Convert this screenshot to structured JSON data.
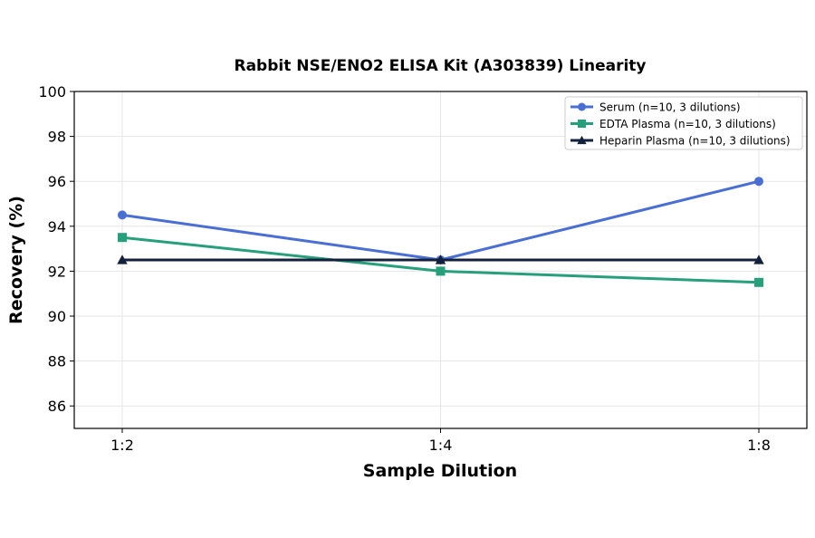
{
  "chart_data": {
    "type": "line",
    "title": "Rabbit NSE/ENO2 ELISA Kit (A303839) Linearity",
    "xlabel": "Sample Dilution",
    "ylabel": "Recovery (%)",
    "categories": [
      "1:2",
      "1:4",
      "1:8"
    ],
    "ylim": [
      85,
      100
    ],
    "yticks": [
      86,
      88,
      90,
      92,
      94,
      96,
      98,
      100
    ],
    "grid": true,
    "legend_position": "top-right",
    "series": [
      {
        "name": "Serum (n=10, 3 dilutions)",
        "values": [
          94.5,
          92.5,
          96.0
        ],
        "color": "#4a6fd4",
        "marker": "circle"
      },
      {
        "name": "EDTA Plasma (n=10, 3 dilutions)",
        "values": [
          93.5,
          92.0,
          91.5
        ],
        "color": "#26a07a",
        "marker": "square"
      },
      {
        "name": "Heparin Plasma (n=10, 3 dilutions)",
        "values": [
          92.5,
          92.5,
          92.5
        ],
        "color": "#14213d",
        "marker": "triangle"
      }
    ]
  }
}
